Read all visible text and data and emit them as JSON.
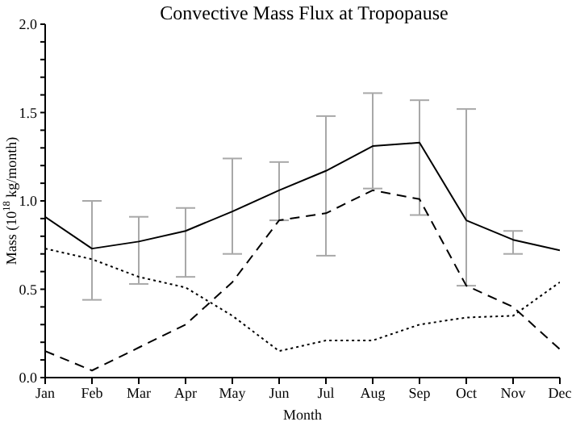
{
  "chart_data": {
    "type": "line",
    "title": "Convective Mass Flux at Tropopause",
    "xlabel": "Month",
    "ylabel": "Mass (10$^{18}$ kg/month)",
    "categories": [
      "Jan",
      "Feb",
      "Mar",
      "Apr",
      "May",
      "Jun",
      "Jul",
      "Aug",
      "Sep",
      "Oct",
      "Nov",
      "Dec"
    ],
    "ylim": [
      0,
      2
    ],
    "yticks": [
      {
        "value": 0,
        "label": "0.0"
      },
      {
        "value": 0.1,
        "label": null
      },
      {
        "value": 0.2,
        "label": null
      },
      {
        "value": 0.3,
        "label": null
      },
      {
        "value": 0.4,
        "label": null
      },
      {
        "value": 0.5,
        "label": "0.5"
      },
      {
        "value": 0.6,
        "label": null
      },
      {
        "value": 0.7,
        "label": null
      },
      {
        "value": 0.8,
        "label": null
      },
      {
        "value": 0.9,
        "label": null
      },
      {
        "value": 1,
        "label": "1.0"
      },
      {
        "value": 1.1,
        "label": null
      },
      {
        "value": 1.2,
        "label": null
      },
      {
        "value": 1.3,
        "label": null
      },
      {
        "value": 1.4,
        "label": null
      },
      {
        "value": 1.5,
        "label": "1.5"
      },
      {
        "value": 1.6,
        "label": null
      },
      {
        "value": 1.7,
        "label": null
      },
      {
        "value": 1.8,
        "label": null
      },
      {
        "value": 1.9,
        "label": null
      },
      {
        "value": 2,
        "label": "2.0"
      }
    ],
    "marker": "none",
    "series": [
      {
        "color": "#000000",
        "line_style": "solid",
        "values": [
          0.91,
          0.73,
          0.77,
          0.83,
          0.94,
          1.06,
          1.17,
          1.31,
          1.33,
          0.89,
          0.78,
          0.72
        ],
        "errors": [
          null,
          [
            0.44,
            1.0
          ],
          [
            0.53,
            0.91
          ],
          [
            0.57,
            0.96
          ],
          [
            0.7,
            1.24
          ],
          [
            0.89,
            1.22
          ],
          [
            0.69,
            1.48
          ],
          [
            1.07,
            1.61
          ],
          [
            0.92,
            1.57
          ],
          [
            0.52,
            1.52
          ],
          [
            0.7,
            0.83
          ],
          null
        ]
      },
      {
        "color": "#000000",
        "line_style": "dashed",
        "values": [
          0.15,
          0.04,
          0.17,
          0.3,
          0.54,
          0.89,
          0.93,
          1.06,
          1.01,
          0.52,
          0.4,
          0.16
        ]
      },
      {
        "color": "#000000",
        "line_style": "dotted",
        "values": [
          0.73,
          0.67,
          0.57,
          0.51,
          0.35,
          0.15,
          0.21,
          0.21,
          0.3,
          0.34,
          0.35,
          0.54
        ]
      }
    ]
  }
}
